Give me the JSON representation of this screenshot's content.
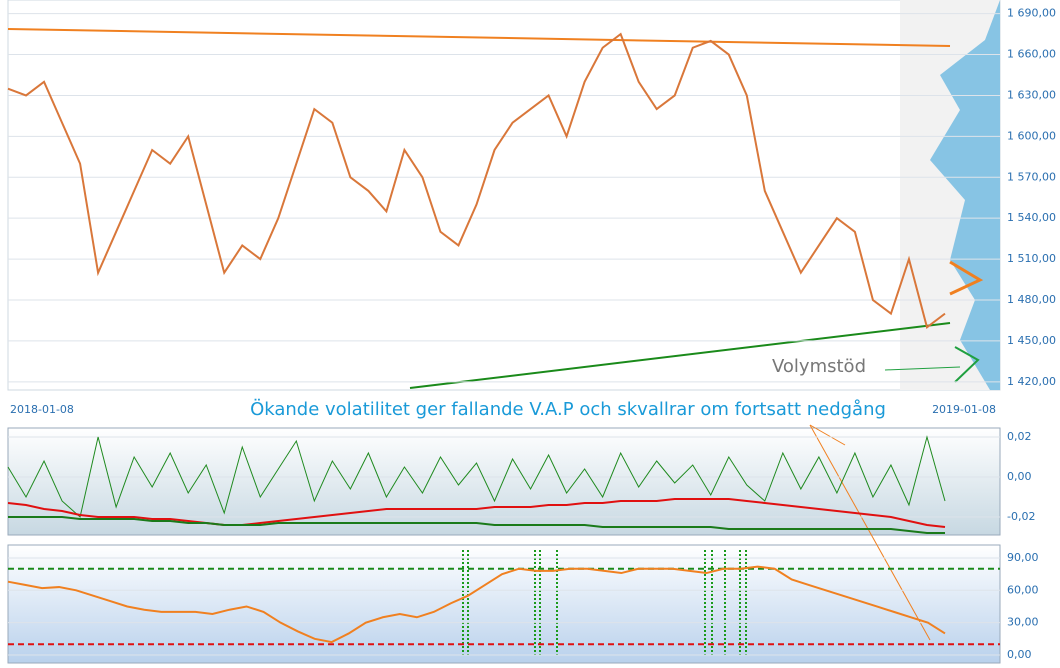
{
  "chart_data": [
    {
      "type": "line",
      "name_date_start": "2018-01-08",
      "date_end": "2019-01-08",
      "annotation": "Ökande volatilitet ger fallande V.A.P och skvallrar om fortsatt nedgång",
      "support_label": "Volymstöd",
      "ylim": [
        1414,
        1700
      ],
      "yticks": [
        {
          "value": 1420,
          "label": "1 420,00"
        },
        {
          "value": 1450,
          "label": "1 450,00"
        },
        {
          "value": 1480,
          "label": "1 480,00"
        },
        {
          "value": 1510,
          "label": "1 510,00"
        },
        {
          "value": 1540,
          "label": "1 540,00"
        },
        {
          "value": 1570,
          "label": "1 570,00"
        },
        {
          "value": 1600,
          "label": "1 600,00"
        },
        {
          "value": 1630,
          "label": "1 630,00"
        },
        {
          "value": 1660,
          "label": "1 660,00"
        },
        {
          "value": 1690,
          "label": "1 690,00"
        }
      ],
      "series": [
        {
          "color": "#d9773a",
          "values": [
            1635,
            1630,
            1640,
            1610,
            1580,
            1500,
            1530,
            1560,
            1590,
            1580,
            1600,
            1550,
            1500,
            1520,
            1510,
            1540,
            1580,
            1620,
            1610,
            1570,
            1560,
            1545,
            1590,
            1570,
            1530,
            1520,
            1550,
            1590,
            1610,
            1620,
            1630,
            1600,
            1640,
            1665,
            1675,
            1640,
            1620,
            1630,
            1665,
            1670,
            1660,
            1630,
            1560,
            1530,
            1500,
            1520,
            1540,
            1530,
            1480,
            1470,
            1510,
            1460,
            1470
          ]
        }
      ]
    },
    {
      "type": "line",
      "ylim": [
        -0.029,
        0.0245
      ],
      "yticks": [
        {
          "value": -0.02,
          "label": "-0,02"
        },
        {
          "value": 0,
          "label": "0,00"
        },
        {
          "value": 0.02,
          "label": "0,02"
        }
      ],
      "series": [
        {
          "color": "#1f8a1f",
          "values": [
            0.005,
            -0.01,
            0.008,
            -0.012,
            -0.02,
            0.02,
            -0.015,
            0.01,
            -0.005,
            0.012,
            -0.008,
            0.006,
            -0.018,
            0.015,
            -0.01,
            0.004,
            0.018,
            -0.012,
            0.008,
            -0.006,
            0.012,
            -0.01,
            0.005,
            -0.008,
            0.01,
            -0.004,
            0.007,
            -0.012,
            0.009,
            -0.006,
            0.011,
            -0.008,
            0.004,
            -0.01,
            0.012,
            -0.005,
            0.008,
            -0.003,
            0.006,
            -0.009,
            0.01,
            -0.004,
            -0.012,
            0.012,
            -0.006,
            0.01,
            -0.008,
            0.012,
            -0.01,
            0.006,
            -0.014,
            0.02,
            -0.012
          ]
        },
        {
          "color": "#e01010",
          "values": [
            -0.013,
            -0.014,
            -0.016,
            -0.017,
            -0.019,
            -0.02,
            -0.02,
            -0.02,
            -0.021,
            -0.021,
            -0.022,
            -0.023,
            -0.024,
            -0.024,
            -0.023,
            -0.022,
            -0.021,
            -0.02,
            -0.019,
            -0.018,
            -0.017,
            -0.016,
            -0.016,
            -0.016,
            -0.016,
            -0.016,
            -0.016,
            -0.015,
            -0.015,
            -0.015,
            -0.014,
            -0.014,
            -0.013,
            -0.013,
            -0.012,
            -0.012,
            -0.012,
            -0.011,
            -0.011,
            -0.011,
            -0.011,
            -0.012,
            -0.013,
            -0.014,
            -0.015,
            -0.016,
            -0.017,
            -0.018,
            -0.019,
            -0.02,
            -0.022,
            -0.024,
            -0.025
          ]
        },
        {
          "color": "#1a7a1a",
          "values": [
            -0.02,
            -0.02,
            -0.02,
            -0.02,
            -0.021,
            -0.021,
            -0.021,
            -0.021,
            -0.022,
            -0.022,
            -0.023,
            -0.023,
            -0.024,
            -0.024,
            -0.024,
            -0.023,
            -0.023,
            -0.023,
            -0.023,
            -0.023,
            -0.023,
            -0.023,
            -0.023,
            -0.023,
            -0.023,
            -0.023,
            -0.023,
            -0.024,
            -0.024,
            -0.024,
            -0.024,
            -0.024,
            -0.024,
            -0.025,
            -0.025,
            -0.025,
            -0.025,
            -0.025,
            -0.025,
            -0.025,
            -0.026,
            -0.026,
            -0.026,
            -0.026,
            -0.026,
            -0.026,
            -0.026,
            -0.026,
            -0.026,
            -0.026,
            -0.027,
            -0.028,
            -0.028
          ]
        }
      ]
    },
    {
      "type": "line",
      "ylim": [
        -7.4,
        102
      ],
      "yticks": [
        {
          "value": 0,
          "label": "0,00"
        },
        {
          "value": 30,
          "label": "30,00"
        },
        {
          "value": 60,
          "label": "60,00"
        },
        {
          "value": 90,
          "label": "90,00"
        }
      ],
      "levels": [
        {
          "value": 80,
          "color": "#1a8a1a"
        },
        {
          "value": 10,
          "color": "#e01010"
        }
      ],
      "series": [
        {
          "color": "#f08020",
          "values": [
            68,
            65,
            62,
            63,
            60,
            55,
            50,
            45,
            42,
            40,
            40,
            40,
            38,
            42,
            45,
            40,
            30,
            22,
            15,
            12,
            20,
            30,
            35,
            38,
            35,
            40,
            48,
            55,
            65,
            75,
            80,
            78,
            78,
            80,
            80,
            78,
            76,
            80,
            80,
            80,
            78,
            76,
            80,
            80,
            82,
            80,
            70,
            65,
            60,
            55,
            50,
            45,
            40,
            35,
            30,
            20
          ]
        }
      ]
    }
  ]
}
